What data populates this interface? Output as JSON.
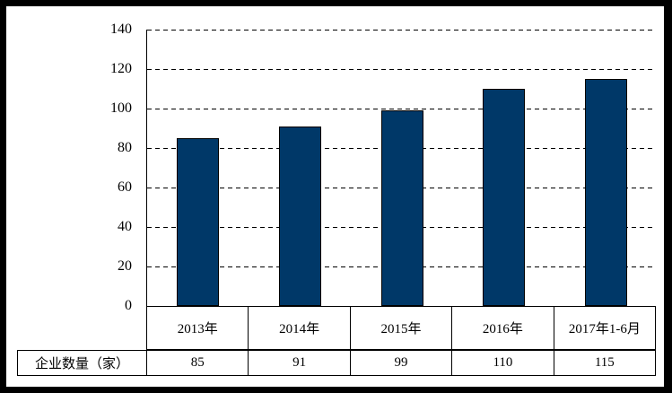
{
  "chart_data": {
    "type": "bar",
    "title": "",
    "xlabel": "",
    "ylabel": "",
    "categories": [
      "2013年",
      "2014年",
      "2015年",
      "2016年",
      "2017年1-6月"
    ],
    "values": [
      85,
      91,
      99,
      110,
      115
    ],
    "series_label": "企业数量（家）",
    "value_labels": [
      "85",
      "91",
      "99",
      "110",
      "115"
    ],
    "ylim": [
      0,
      140
    ],
    "yticks": [
      0,
      20,
      40,
      60,
      80,
      100,
      120,
      140
    ],
    "grid": "horizontal-dashed",
    "legend_position": "table-bottom-left",
    "bar_color": "#003868",
    "bar_border_color": "#000000",
    "grid_color": "#000000",
    "axis_color": "#000000",
    "frame_color": "#000000",
    "background_color": "#ffffff"
  }
}
